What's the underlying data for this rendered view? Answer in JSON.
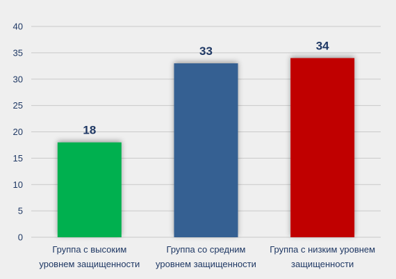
{
  "chart_data": {
    "type": "bar",
    "categories": [
      [
        "Группа с высоким",
        "уровнем защищенности"
      ],
      [
        "Группа со средним",
        "уровнем защищенности"
      ],
      [
        "Группа с низким уровнем",
        "защищенности"
      ]
    ],
    "values": [
      18,
      33,
      34
    ],
    "colors": [
      "#00b050",
      "#366092",
      "#c00000"
    ],
    "ylim": [
      0,
      40
    ],
    "yticks": [
      0,
      5,
      10,
      15,
      20,
      25,
      30,
      35,
      40
    ],
    "grid": true,
    "title": "",
    "xlabel": "",
    "ylabel": ""
  },
  "colors": {
    "background": "#efefef",
    "text": "#1f3864",
    "grid": "#c9c9c9"
  }
}
